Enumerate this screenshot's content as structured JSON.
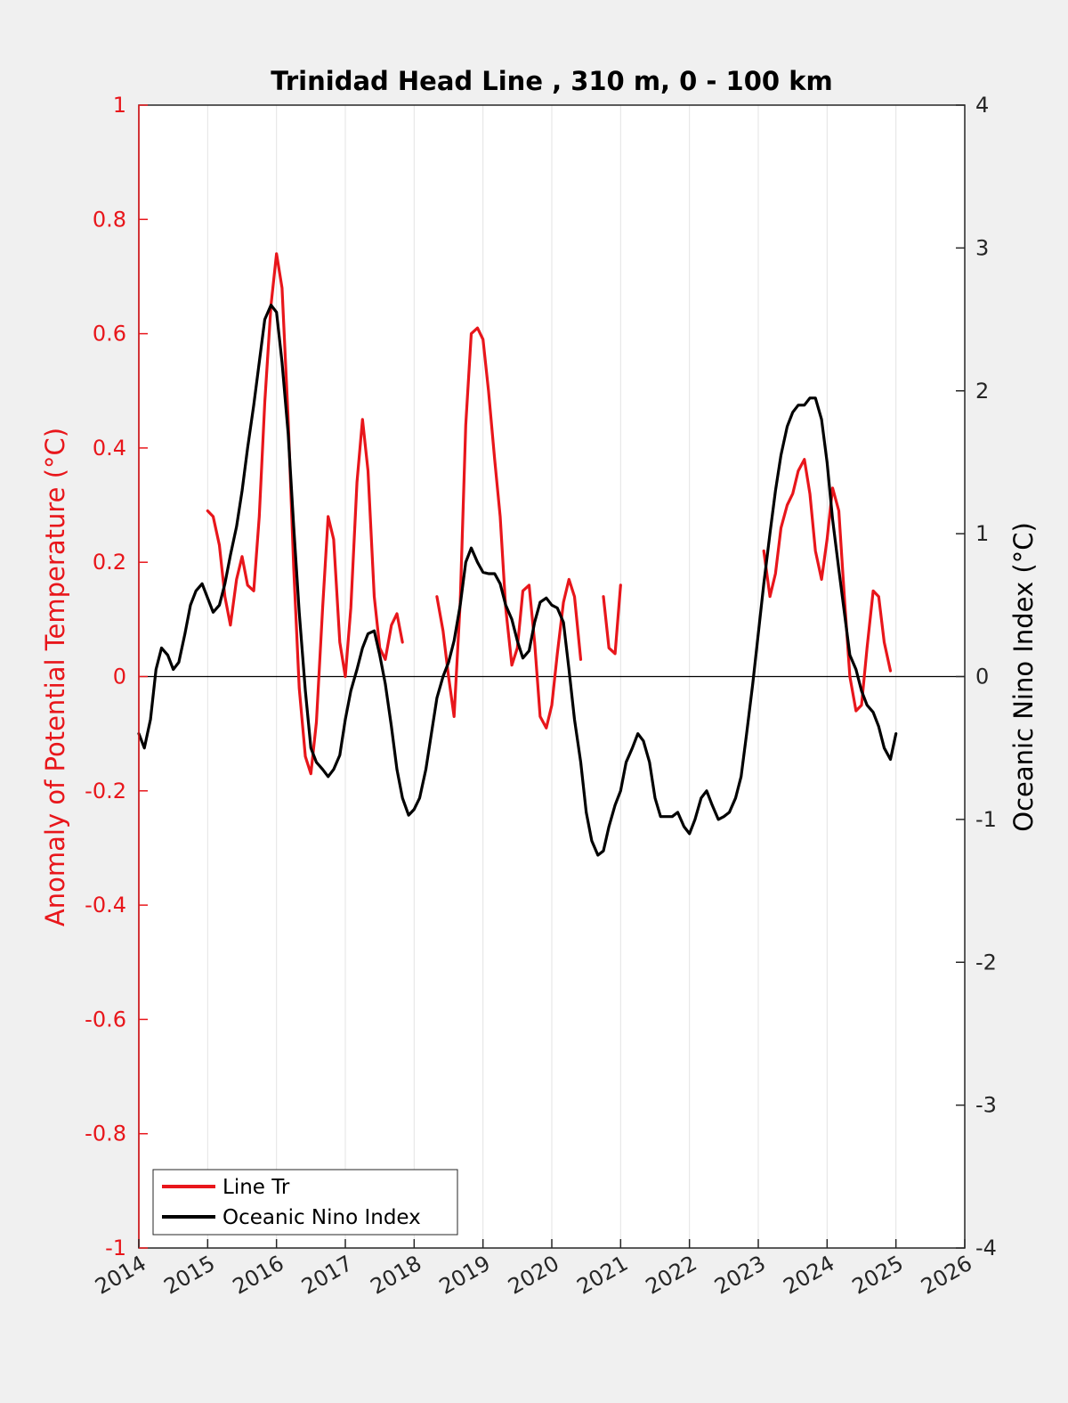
{
  "chart_data": {
    "type": "line",
    "title": "Trinidad Head Line , 310 m, 0 - 100 km",
    "xlabel": "",
    "ylabel_left": "Anomaly of Potential Temperature (°C)",
    "ylabel_right": "Oceanic Nino Index (°C)",
    "xlim": [
      2014,
      2026
    ],
    "ylim_left": [
      -1,
      1
    ],
    "ylim_right": [
      -4,
      4
    ],
    "x_ticks": [
      "2014",
      "2015",
      "2016",
      "2017",
      "2018",
      "2019",
      "2020",
      "2021",
      "2022",
      "2023",
      "2024",
      "2025",
      "2026"
    ],
    "y_ticks_left": [
      "-1",
      "-0.8",
      "-0.6",
      "-0.4",
      "-0.2",
      "0",
      "0.2",
      "0.4",
      "0.6",
      "0.8",
      "1"
    ],
    "y_ticks_right": [
      "-4",
      "-3",
      "-2",
      "-1",
      "0",
      "1",
      "2",
      "3",
      "4"
    ],
    "grid": "vertical",
    "legend": "bottom-left",
    "colors": {
      "left_axis": "#e8161b",
      "series_line_tr": "#e8161b",
      "series_oni": "#000000",
      "background": "#f0f0f0",
      "plot_bg": "#ffffff"
    },
    "series": [
      {
        "name": "Line Tr",
        "axis": "left",
        "segments": [
          [
            [
              2015.0,
              0.29
            ],
            [
              2015.08,
              0.28
            ],
            [
              2015.17,
              0.23
            ],
            [
              2015.25,
              0.14
            ],
            [
              2015.33,
              0.09
            ],
            [
              2015.42,
              0.17
            ],
            [
              2015.5,
              0.21
            ],
            [
              2015.58,
              0.16
            ],
            [
              2015.67,
              0.15
            ],
            [
              2015.75,
              0.28
            ],
            [
              2015.83,
              0.48
            ],
            [
              2015.92,
              0.65
            ],
            [
              2016.0,
              0.74
            ],
            [
              2016.08,
              0.68
            ],
            [
              2016.17,
              0.45
            ],
            [
              2016.25,
              0.19
            ],
            [
              2016.33,
              -0.02
            ],
            [
              2016.42,
              -0.14
            ],
            [
              2016.5,
              -0.17
            ],
            [
              2016.58,
              -0.08
            ],
            [
              2016.67,
              0.12
            ],
            [
              2016.75,
              0.28
            ],
            [
              2016.83,
              0.24
            ],
            [
              2016.92,
              0.06
            ],
            [
              2017.0,
              0.0
            ],
            [
              2017.08,
              0.12
            ],
            [
              2017.17,
              0.34
            ],
            [
              2017.25,
              0.45
            ],
            [
              2017.33,
              0.36
            ],
            [
              2017.42,
              0.14
            ],
            [
              2017.5,
              0.05
            ],
            [
              2017.58,
              0.03
            ],
            [
              2017.67,
              0.09
            ],
            [
              2017.75,
              0.11
            ],
            [
              2017.83,
              0.06
            ]
          ],
          [
            [
              2018.33,
              0.14
            ],
            [
              2018.42,
              0.08
            ],
            [
              2018.5,
              0.0
            ],
            [
              2018.58,
              -0.07
            ],
            [
              2018.67,
              0.13
            ],
            [
              2018.75,
              0.44
            ],
            [
              2018.83,
              0.6
            ],
            [
              2018.92,
              0.61
            ],
            [
              2019.0,
              0.59
            ],
            [
              2019.08,
              0.5
            ],
            [
              2019.17,
              0.38
            ],
            [
              2019.25,
              0.28
            ],
            [
              2019.33,
              0.12
            ],
            [
              2019.42,
              0.02
            ],
            [
              2019.5,
              0.05
            ],
            [
              2019.58,
              0.15
            ],
            [
              2019.67,
              0.16
            ],
            [
              2019.75,
              0.06
            ],
            [
              2019.83,
              -0.07
            ],
            [
              2019.92,
              -0.09
            ],
            [
              2020.0,
              -0.05
            ],
            [
              2020.08,
              0.04
            ],
            [
              2020.17,
              0.13
            ],
            [
              2020.25,
              0.17
            ],
            [
              2020.33,
              0.14
            ],
            [
              2020.42,
              0.03
            ]
          ],
          [
            [
              2020.75,
              0.14
            ],
            [
              2020.83,
              0.05
            ],
            [
              2020.92,
              0.04
            ],
            [
              2021.0,
              0.16
            ]
          ],
          [
            [
              2023.08,
              0.22
            ],
            [
              2023.17,
              0.14
            ],
            [
              2023.25,
              0.18
            ],
            [
              2023.33,
              0.26
            ],
            [
              2023.42,
              0.3
            ],
            [
              2023.5,
              0.32
            ],
            [
              2023.58,
              0.36
            ],
            [
              2023.67,
              0.38
            ],
            [
              2023.75,
              0.32
            ],
            [
              2023.83,
              0.22
            ],
            [
              2023.92,
              0.17
            ],
            [
              2024.0,
              0.24
            ],
            [
              2024.08,
              0.33
            ],
            [
              2024.17,
              0.29
            ],
            [
              2024.25,
              0.14
            ],
            [
              2024.33,
              0.0
            ],
            [
              2024.42,
              -0.06
            ],
            [
              2024.5,
              -0.05
            ],
            [
              2024.58,
              0.05
            ],
            [
              2024.67,
              0.15
            ],
            [
              2024.75,
              0.14
            ],
            [
              2024.83,
              0.06
            ],
            [
              2024.92,
              0.01
            ]
          ]
        ]
      },
      {
        "name": "Oceanic Nino Index",
        "axis": "right",
        "segments": [
          [
            [
              2014.0,
              -0.4
            ],
            [
              2014.08,
              -0.5
            ],
            [
              2014.17,
              -0.3
            ],
            [
              2014.25,
              0.05
            ],
            [
              2014.33,
              0.2
            ],
            [
              2014.42,
              0.15
            ],
            [
              2014.5,
              0.05
            ],
            [
              2014.58,
              0.1
            ],
            [
              2014.67,
              0.3
            ],
            [
              2014.75,
              0.5
            ],
            [
              2014.83,
              0.6
            ],
            [
              2014.92,
              0.65
            ],
            [
              2015.0,
              0.55
            ],
            [
              2015.08,
              0.45
            ],
            [
              2015.17,
              0.5
            ],
            [
              2015.25,
              0.65
            ],
            [
              2015.33,
              0.85
            ],
            [
              2015.42,
              1.05
            ],
            [
              2015.5,
              1.3
            ],
            [
              2015.58,
              1.6
            ],
            [
              2015.67,
              1.9
            ],
            [
              2015.75,
              2.2
            ],
            [
              2015.83,
              2.5
            ],
            [
              2015.92,
              2.6
            ],
            [
              2016.0,
              2.55
            ],
            [
              2016.08,
              2.2
            ],
            [
              2016.17,
              1.7
            ],
            [
              2016.25,
              1.05
            ],
            [
              2016.33,
              0.45
            ],
            [
              2016.42,
              -0.1
            ],
            [
              2016.5,
              -0.5
            ],
            [
              2016.58,
              -0.6
            ],
            [
              2016.67,
              -0.65
            ],
            [
              2016.75,
              -0.7
            ],
            [
              2016.83,
              -0.65
            ],
            [
              2016.92,
              -0.55
            ],
            [
              2017.0,
              -0.3
            ],
            [
              2017.08,
              -0.1
            ],
            [
              2017.17,
              0.05
            ],
            [
              2017.25,
              0.2
            ],
            [
              2017.33,
              0.3
            ],
            [
              2017.42,
              0.32
            ],
            [
              2017.5,
              0.15
            ],
            [
              2017.58,
              -0.05
            ],
            [
              2017.67,
              -0.35
            ],
            [
              2017.75,
              -0.65
            ],
            [
              2017.83,
              -0.85
            ],
            [
              2017.92,
              -0.97
            ],
            [
              2018.0,
              -0.93
            ],
            [
              2018.08,
              -0.85
            ],
            [
              2018.17,
              -0.65
            ],
            [
              2018.25,
              -0.4
            ],
            [
              2018.33,
              -0.15
            ],
            [
              2018.42,
              0.0
            ],
            [
              2018.5,
              0.1
            ],
            [
              2018.58,
              0.25
            ],
            [
              2018.67,
              0.5
            ],
            [
              2018.75,
              0.8
            ],
            [
              2018.83,
              0.9
            ],
            [
              2018.92,
              0.8
            ],
            [
              2019.0,
              0.73
            ],
            [
              2019.08,
              0.72
            ],
            [
              2019.17,
              0.72
            ],
            [
              2019.25,
              0.65
            ],
            [
              2019.33,
              0.5
            ],
            [
              2019.42,
              0.4
            ],
            [
              2019.5,
              0.25
            ],
            [
              2019.58,
              0.13
            ],
            [
              2019.67,
              0.18
            ],
            [
              2019.75,
              0.38
            ],
            [
              2019.83,
              0.52
            ],
            [
              2019.92,
              0.55
            ],
            [
              2020.0,
              0.5
            ],
            [
              2020.08,
              0.48
            ],
            [
              2020.17,
              0.38
            ],
            [
              2020.25,
              0.05
            ],
            [
              2020.33,
              -0.3
            ],
            [
              2020.42,
              -0.6
            ],
            [
              2020.5,
              -0.95
            ],
            [
              2020.58,
              -1.15
            ],
            [
              2020.67,
              -1.25
            ],
            [
              2020.75,
              -1.22
            ],
            [
              2020.83,
              -1.05
            ],
            [
              2020.92,
              -0.9
            ],
            [
              2021.0,
              -0.8
            ],
            [
              2021.08,
              -0.6
            ],
            [
              2021.17,
              -0.5
            ],
            [
              2021.25,
              -0.4
            ],
            [
              2021.33,
              -0.45
            ],
            [
              2021.42,
              -0.6
            ],
            [
              2021.5,
              -0.85
            ],
            [
              2021.58,
              -0.98
            ],
            [
              2021.67,
              -0.98
            ],
            [
              2021.75,
              -0.98
            ],
            [
              2021.83,
              -0.95
            ],
            [
              2021.92,
              -1.05
            ],
            [
              2022.0,
              -1.1
            ],
            [
              2022.08,
              -1.0
            ],
            [
              2022.17,
              -0.85
            ],
            [
              2022.25,
              -0.8
            ],
            [
              2022.33,
              -0.9
            ],
            [
              2022.42,
              -1.0
            ],
            [
              2022.5,
              -0.98
            ],
            [
              2022.58,
              -0.95
            ],
            [
              2022.67,
              -0.85
            ],
            [
              2022.75,
              -0.7
            ],
            [
              2022.83,
              -0.4
            ],
            [
              2022.92,
              -0.05
            ],
            [
              2023.0,
              0.3
            ],
            [
              2023.08,
              0.65
            ],
            [
              2023.17,
              1.0
            ],
            [
              2023.25,
              1.3
            ],
            [
              2023.33,
              1.55
            ],
            [
              2023.42,
              1.75
            ],
            [
              2023.5,
              1.85
            ],
            [
              2023.58,
              1.9
            ],
            [
              2023.67,
              1.9
            ],
            [
              2023.75,
              1.95
            ],
            [
              2023.83,
              1.95
            ],
            [
              2023.92,
              1.8
            ],
            [
              2024.0,
              1.5
            ],
            [
              2024.08,
              1.1
            ],
            [
              2024.17,
              0.75
            ],
            [
              2024.25,
              0.45
            ],
            [
              2024.33,
              0.15
            ],
            [
              2024.42,
              0.05
            ],
            [
              2024.5,
              -0.1
            ],
            [
              2024.58,
              -0.2
            ],
            [
              2024.67,
              -0.25
            ],
            [
              2024.75,
              -0.35
            ],
            [
              2024.83,
              -0.5
            ],
            [
              2024.92,
              -0.58
            ],
            [
              2025.0,
              -0.4
            ]
          ]
        ]
      }
    ]
  }
}
